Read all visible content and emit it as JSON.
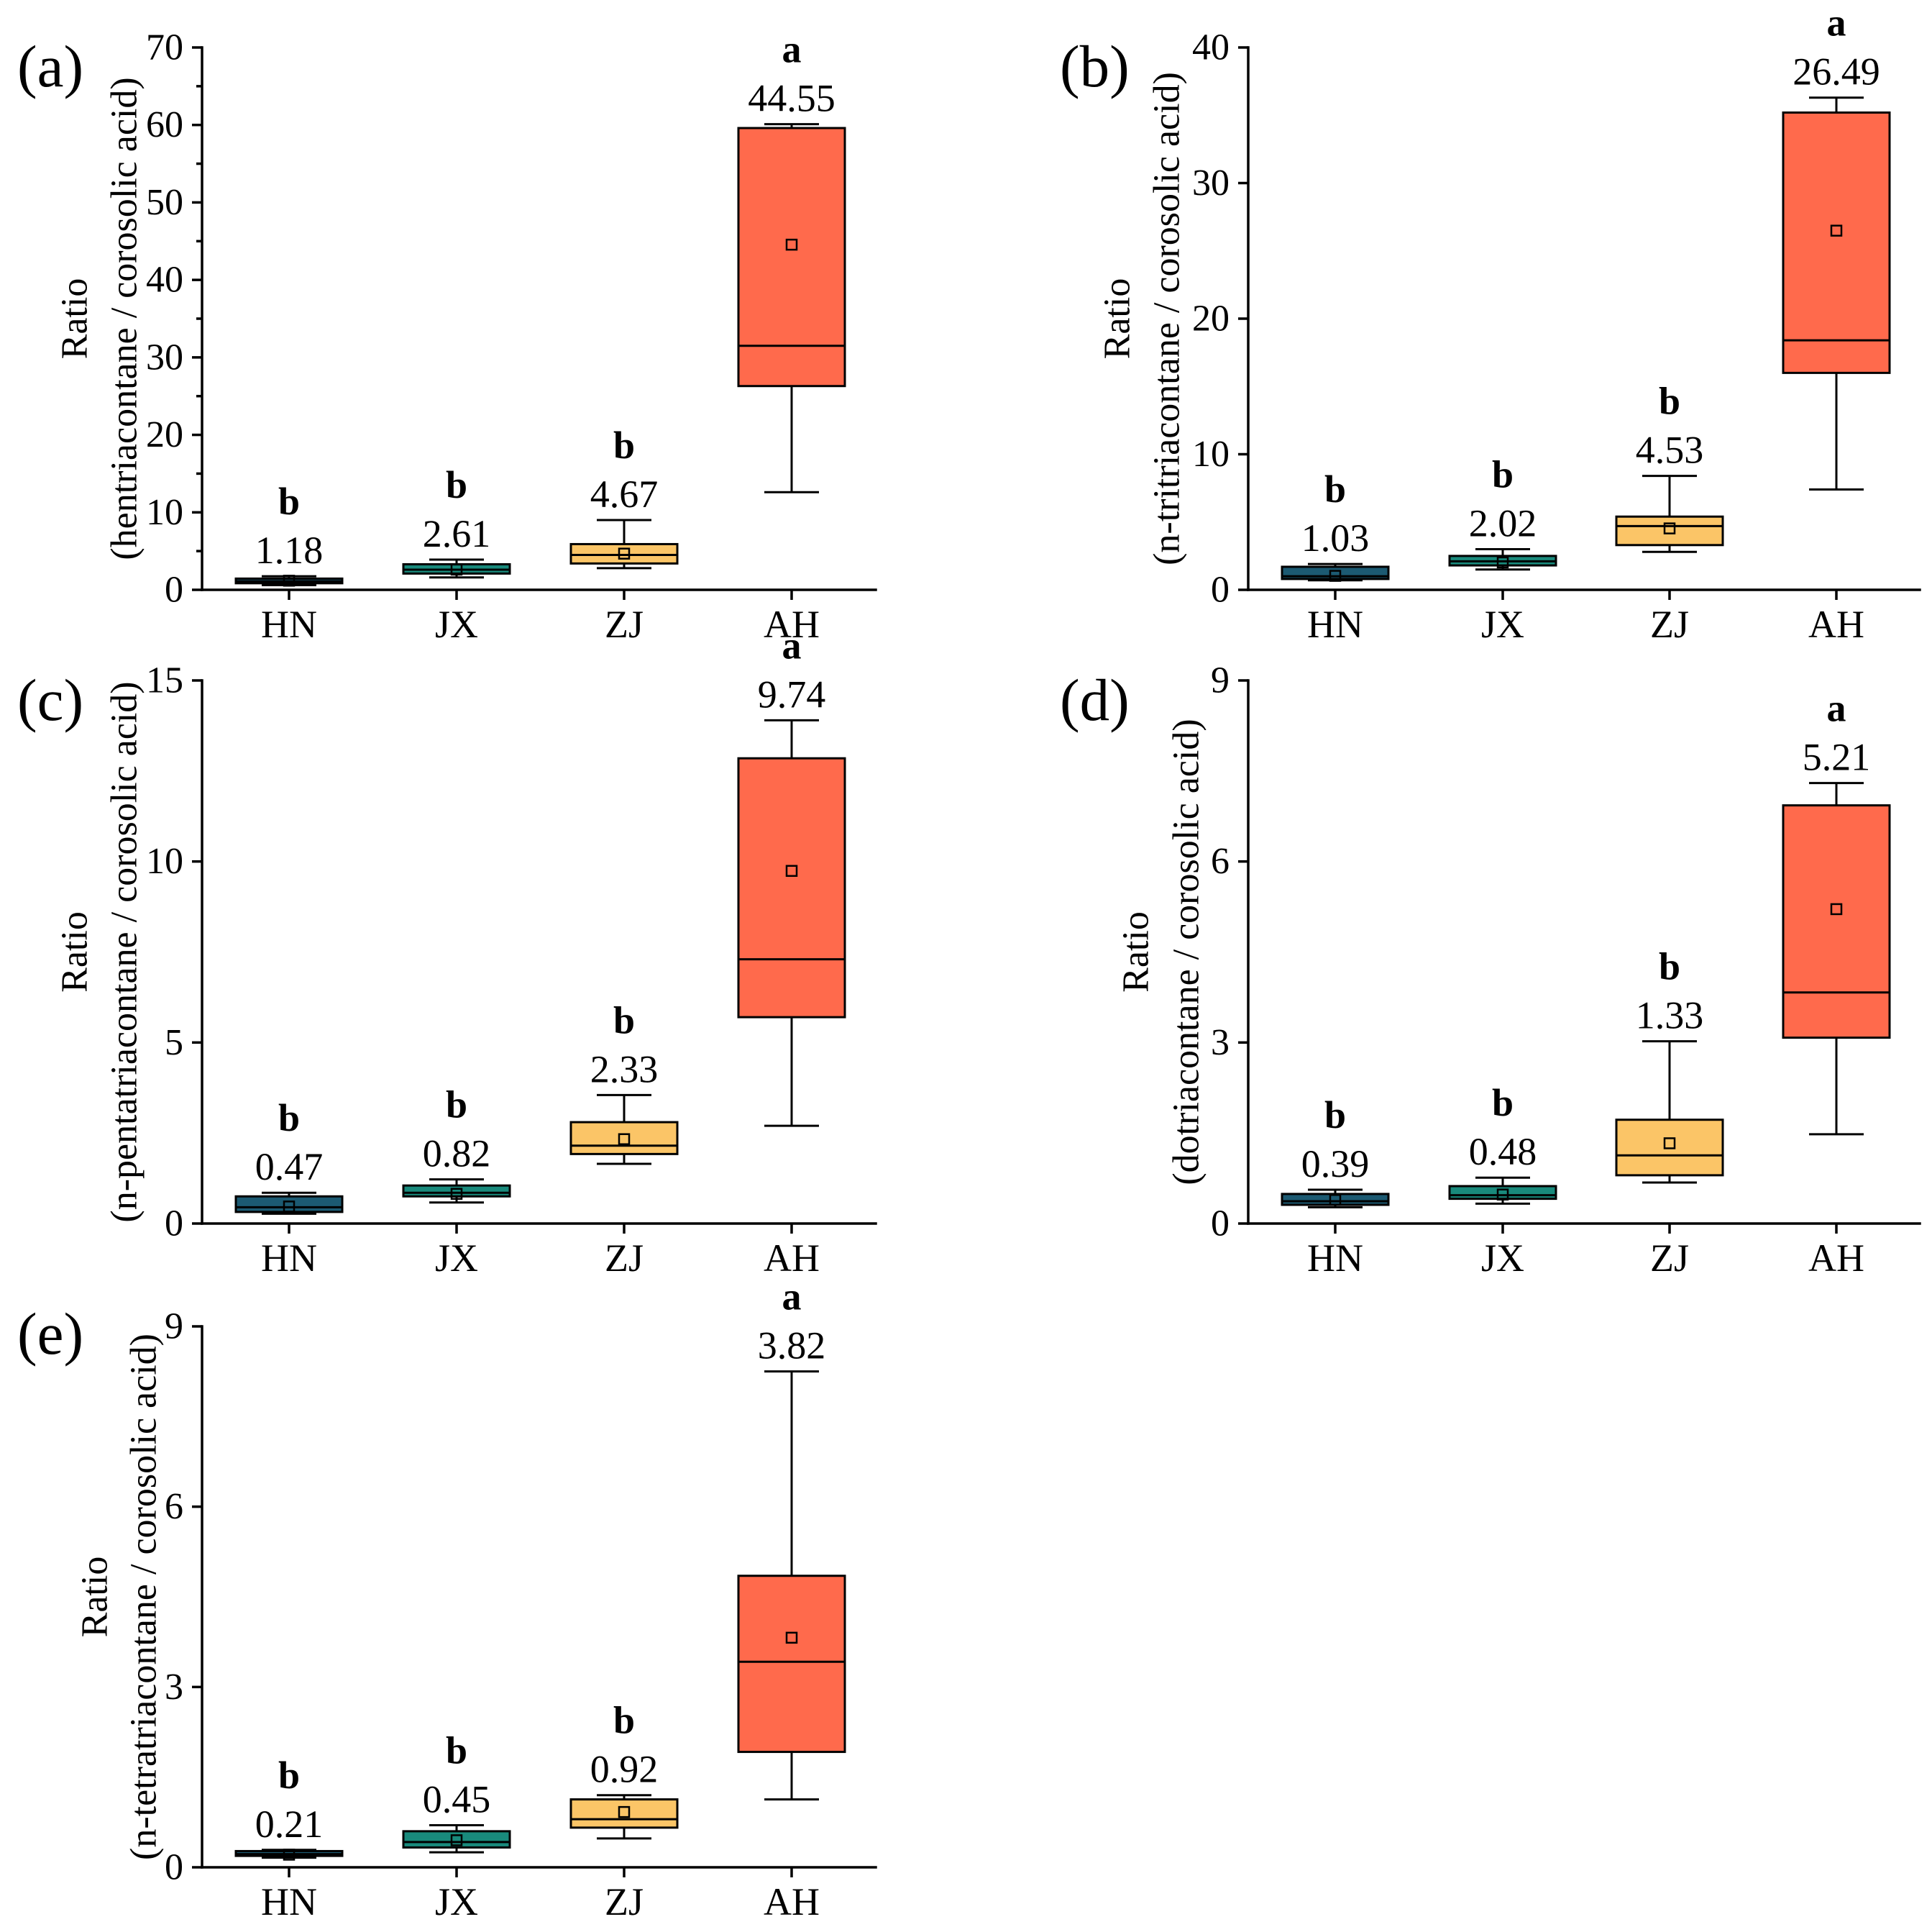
{
  "chart_data": [
    {
      "panel_label": "(a)",
      "type": "box",
      "categories": [
        "HN",
        "JX",
        "ZJ",
        "AH"
      ],
      "colors": [
        "#1c5a72",
        "#198a7c",
        "#fbc567",
        "#ff6a4c"
      ],
      "xlabel": "",
      "ylabel": [
        "Ratio",
        "(hentriacontane / corosolic acid)"
      ],
      "ylim": [
        0,
        70
      ],
      "yticks": [
        0,
        10,
        20,
        30,
        40,
        50,
        60,
        70
      ],
      "minor_yticks": [
        5,
        15,
        25,
        35,
        45,
        55,
        65
      ],
      "boxes": [
        {
          "min": 0.6,
          "q1": 0.85,
          "median": 1.1,
          "q3": 1.45,
          "max": 1.75,
          "mean": 1.18,
          "group": "b"
        },
        {
          "min": 1.6,
          "q1": 2.1,
          "median": 2.6,
          "q3": 3.3,
          "max": 3.9,
          "mean": 2.61,
          "group": "b"
        },
        {
          "min": 2.8,
          "q1": 3.4,
          "median": 4.5,
          "q3": 5.9,
          "max": 9.0,
          "mean": 4.67,
          "group": "b"
        },
        {
          "min": 12.6,
          "q1": 26.3,
          "median": 31.5,
          "q3": 59.6,
          "max": 60.1,
          "mean": 44.55,
          "group": "a"
        }
      ]
    },
    {
      "panel_label": "(b)",
      "type": "box",
      "categories": [
        "HN",
        "JX",
        "ZJ",
        "AH"
      ],
      "colors": [
        "#1c5a72",
        "#198a7c",
        "#fbc567",
        "#ff6a4c"
      ],
      "xlabel": "",
      "ylabel": [
        "Ratio",
        "(n-tritriacontane / corosolic acid)"
      ],
      "ylim": [
        0,
        40
      ],
      "yticks": [
        0,
        10,
        20,
        30,
        40
      ],
      "boxes": [
        {
          "min": 0.7,
          "q1": 0.8,
          "median": 1.0,
          "q3": 1.7,
          "max": 1.9,
          "mean": 1.03,
          "group": "b"
        },
        {
          "min": 1.5,
          "q1": 1.8,
          "median": 2.1,
          "q3": 2.5,
          "max": 3.0,
          "mean": 2.02,
          "group": "b"
        },
        {
          "min": 2.8,
          "q1": 3.3,
          "median": 4.7,
          "q3": 5.4,
          "max": 8.4,
          "mean": 4.53,
          "group": "b"
        },
        {
          "min": 7.4,
          "q1": 16.0,
          "median": 18.4,
          "q3": 35.2,
          "max": 36.3,
          "mean": 26.49,
          "group": "a"
        }
      ]
    },
    {
      "panel_label": "(c)",
      "type": "box",
      "categories": [
        "HN",
        "JX",
        "ZJ",
        "AH"
      ],
      "colors": [
        "#1c5a72",
        "#198a7c",
        "#fbc567",
        "#ff6a4c"
      ],
      "xlabel": "",
      "ylabel": [
        "Ratio",
        "(n-pentatriacontane / corosolic acid)"
      ],
      "ylim": [
        0,
        15
      ],
      "yticks": [
        0,
        5,
        10,
        15
      ],
      "boxes": [
        {
          "min": 0.27,
          "q1": 0.32,
          "median": 0.45,
          "q3": 0.75,
          "max": 0.85,
          "mean": 0.47,
          "group": "b"
        },
        {
          "min": 0.58,
          "q1": 0.75,
          "median": 0.85,
          "q3": 1.05,
          "max": 1.22,
          "mean": 0.82,
          "group": "b"
        },
        {
          "min": 1.65,
          "q1": 1.92,
          "median": 2.15,
          "q3": 2.8,
          "max": 3.55,
          "mean": 2.33,
          "group": "b"
        },
        {
          "min": 2.7,
          "q1": 5.7,
          "median": 7.3,
          "q3": 12.85,
          "max": 13.9,
          "mean": 9.74,
          "group": "a"
        }
      ]
    },
    {
      "panel_label": "(d)",
      "type": "box",
      "categories": [
        "HN",
        "JX",
        "ZJ",
        "AH"
      ],
      "colors": [
        "#1c5a72",
        "#198a7c",
        "#fbc567",
        "#ff6a4c"
      ],
      "xlabel": "",
      "ylabel": [
        "Ratio",
        "(dotriacontane / corosolic acid)"
      ],
      "ylim": [
        0,
        9
      ],
      "yticks": [
        0,
        3,
        6,
        9
      ],
      "boxes": [
        {
          "min": 0.27,
          "q1": 0.31,
          "median": 0.37,
          "q3": 0.49,
          "max": 0.56,
          "mean": 0.39,
          "group": "b"
        },
        {
          "min": 0.33,
          "q1": 0.41,
          "median": 0.47,
          "q3": 0.62,
          "max": 0.76,
          "mean": 0.48,
          "group": "b"
        },
        {
          "min": 0.68,
          "q1": 0.8,
          "median": 1.13,
          "q3": 1.72,
          "max": 3.02,
          "mean": 1.33,
          "group": "b"
        },
        {
          "min": 1.48,
          "q1": 3.08,
          "median": 3.83,
          "q3": 6.93,
          "max": 7.3,
          "mean": 5.21,
          "group": "a"
        }
      ]
    },
    {
      "panel_label": "(e)",
      "type": "box",
      "categories": [
        "HN",
        "JX",
        "ZJ",
        "AH"
      ],
      "colors": [
        "#1c5a72",
        "#198a7c",
        "#fbc567",
        "#ff6a4c"
      ],
      "xlabel": "",
      "ylabel": [
        "Ratio",
        "(n-tetratriacontane / corosolic acid)"
      ],
      "ylim": [
        0,
        9
      ],
      "yticks": [
        0,
        3,
        6,
        9
      ],
      "boxes": [
        {
          "min": 0.16,
          "q1": 0.19,
          "median": 0.22,
          "q3": 0.27,
          "max": 0.29,
          "mean": 0.21,
          "group": "b"
        },
        {
          "min": 0.25,
          "q1": 0.33,
          "median": 0.42,
          "q3": 0.6,
          "max": 0.7,
          "mean": 0.45,
          "group": "b"
        },
        {
          "min": 0.48,
          "q1": 0.66,
          "median": 0.8,
          "q3": 1.13,
          "max": 1.2,
          "mean": 0.92,
          "group": "b"
        },
        {
          "min": 1.13,
          "q1": 1.92,
          "median": 3.42,
          "q3": 4.85,
          "max": 8.25,
          "mean": 3.82,
          "group": "a"
        }
      ]
    }
  ]
}
